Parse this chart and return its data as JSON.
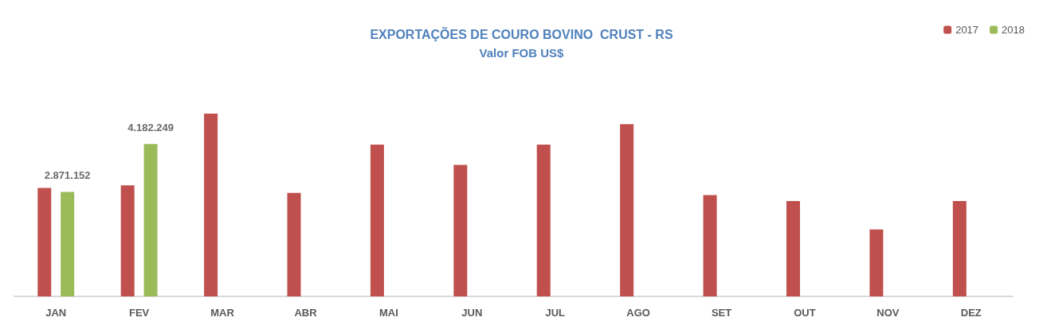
{
  "chart_data": {
    "type": "bar",
    "title": "EXPORTAÇÕES DE COURO BOVINO  CRUST - RS",
    "subtitle": "Valor FOB US$",
    "categories": [
      "JAN",
      "FEV",
      "MAR",
      "ABR",
      "MAI",
      "JUN",
      "JUL",
      "AGO",
      "SET",
      "OUT",
      "NOV",
      "DEZ"
    ],
    "series": [
      {
        "name": "2017",
        "color": "#c0504d",
        "values": [
          2980000,
          3050000,
          5020000,
          2840000,
          4170000,
          3610000,
          4170000,
          4730000,
          2780000,
          2620000,
          1840000,
          2620000
        ]
      },
      {
        "name": "2018",
        "color": "#9bbb59",
        "values": [
          2871152,
          4182249,
          null,
          null,
          null,
          null,
          null,
          null,
          null,
          null,
          null,
          null
        ],
        "value_labels": [
          "2.871.152",
          "4.182.249",
          null,
          null,
          null,
          null,
          null,
          null,
          null,
          null,
          null,
          null
        ]
      }
    ],
    "legend": "top right",
    "grid": false
  }
}
